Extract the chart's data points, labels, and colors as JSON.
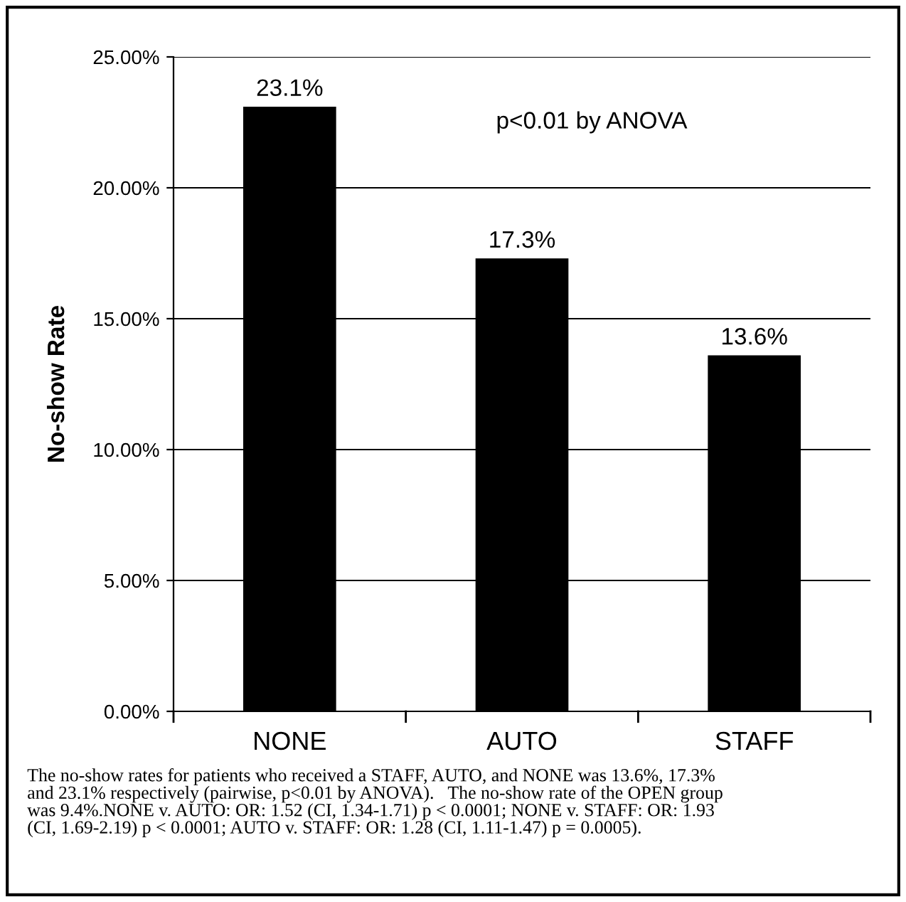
{
  "chart_data": {
    "type": "bar",
    "ylabel": "No-show Rate",
    "categories": [
      "NONE",
      "AUTO",
      "STAFF"
    ],
    "values": [
      23.1,
      17.3,
      13.6
    ],
    "value_labels": [
      "23.1%",
      "17.3%",
      "13.6%"
    ],
    "color": "#000000",
    "ylim": [
      0,
      25
    ],
    "yticks": [
      {
        "value": 0,
        "label": "0.00%"
      },
      {
        "value": 5,
        "label": "5.00%"
      },
      {
        "value": 10,
        "label": "10.00%"
      },
      {
        "value": 15,
        "label": "15.00%"
      },
      {
        "value": 20,
        "label": "20.00%"
      },
      {
        "value": 25,
        "label": "25.00%"
      }
    ],
    "grid": "y",
    "legend": false,
    "annotations": [
      {
        "text": "p<0.01 by ANOVA"
      },
      {
        "text": "The no-show rates for patients who received a STAFF, AUTO, and NONE was 13.6%, 17.3%\nand 23.1% respectively (pairwise, p<0.01 by ANOVA).   The no-show rate of the OPEN group\nwas 9.4%.NONE v. AUTO: OR: 1.52 (CI, 1.34-1.71) p < 0.0001; NONE v. STAFF: OR: 1.93\n(CI, 1.69-2.19) p < 0.0001; AUTO v. STAFF: OR: 1.28 (CI, 1.11-1.47) p = 0.0005)."
      }
    ]
  }
}
